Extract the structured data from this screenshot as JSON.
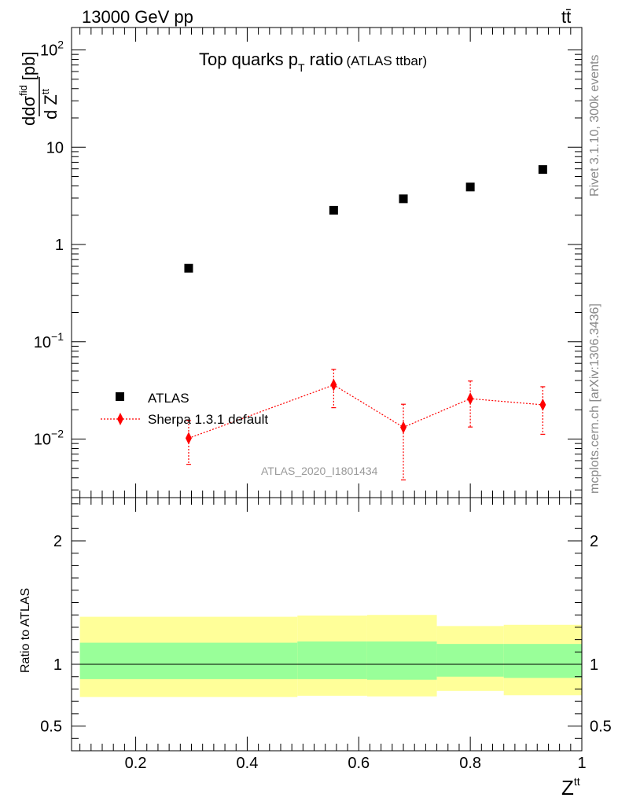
{
  "header": {
    "energy": "13000 GeV pp",
    "process": "tt̄"
  },
  "title": {
    "main": "Top quarks p",
    "sub": "T",
    "rest": " ratio",
    "tag": "(ATLAS ttbar)"
  },
  "ylabel": {
    "d1": "d",
    "dsigma": "dσ",
    "fid": "fid",
    "dz": "d Z",
    "tt": "tt",
    "unit": "[pb]"
  },
  "ratio_ylabel": "Ratio to ATLAS",
  "xlabel": {
    "base": "Z",
    "sup": "tt"
  },
  "analysis_label": "ATLAS_2020_I1801434",
  "side_text": {
    "rivet": "Rivet 3.1.10,  300k events",
    "mcplots": "mcplots.cern.ch [arXiv:1306.3436]"
  },
  "colors": {
    "data": "#000000",
    "mc": "#ff0000",
    "band_inner": "#99ff99",
    "band_outer": "#ffff99"
  },
  "chart_data": [
    {
      "type": "scatter",
      "title": "Top quarks pT ratio (ATLAS ttbar)",
      "xlabel": "Ztt",
      "ylabel": "dσfid/d Ztt [pb]",
      "yscale": "log",
      "ylim": [
        0.0025,
        170
      ],
      "xlim": [
        0.085,
        1.0
      ],
      "y_ticks": [
        {
          "v": 100,
          "label": "10",
          "exp": "2"
        },
        {
          "v": 10,
          "label": "10",
          "exp": ""
        },
        {
          "v": 1,
          "label": "1",
          "exp": ""
        },
        {
          "v": 0.1,
          "label": "10",
          "exp": "−1"
        },
        {
          "v": 0.01,
          "label": "10",
          "exp": "−2"
        }
      ],
      "legend_position": "bottom-left",
      "series": [
        {
          "name": "ATLAS",
          "marker": "square",
          "x": [
            0.295,
            0.555,
            0.68,
            0.8,
            0.93
          ],
          "y": [
            0.57,
            2.25,
            2.95,
            3.9,
            5.9
          ]
        },
        {
          "name": "Sherpa 1.3.1 default",
          "marker": "diamond",
          "line": "dotted",
          "x": [
            0.295,
            0.555,
            0.68,
            0.8,
            0.93
          ],
          "y": [
            0.0102,
            0.036,
            0.0132,
            0.026,
            0.0225
          ],
          "y_low": [
            0.0055,
            0.021,
            0.0038,
            0.0133,
            0.0112
          ],
          "y_high": [
            0.0155,
            0.052,
            0.0228,
            0.0395,
            0.0345
          ]
        }
      ]
    },
    {
      "type": "area",
      "ylabel": "Ratio to ATLAS",
      "xlabel": "Ztt",
      "xlim": [
        0.085,
        1.0
      ],
      "ylim": [
        0.3,
        2.35
      ],
      "x_ticks": [
        0.2,
        0.4,
        0.6,
        0.8,
        1
      ],
      "x_tick_labels": [
        "0.2",
        "0.4",
        "0.6",
        "0.8",
        "1"
      ],
      "y_ticks": [
        0.5,
        1,
        2
      ],
      "y_tick_labels": [
        "0.5",
        "1",
        "2"
      ],
      "bins": [
        {
          "x0": 0.1,
          "x1": 0.49,
          "outer_lo": 0.735,
          "outer_hi": 1.385,
          "inner_lo": 0.88,
          "inner_hi": 1.175
        },
        {
          "x0": 0.49,
          "x1": 0.615,
          "outer_lo": 0.745,
          "outer_hi": 1.395,
          "inner_lo": 0.88,
          "inner_hi": 1.185
        },
        {
          "x0": 0.615,
          "x1": 0.74,
          "outer_lo": 0.74,
          "outer_hi": 1.4,
          "inner_lo": 0.875,
          "inner_hi": 1.185
        },
        {
          "x0": 0.74,
          "x1": 0.86,
          "outer_lo": 0.785,
          "outer_hi": 1.31,
          "inner_lo": 0.9,
          "inner_hi": 1.165
        },
        {
          "x0": 0.86,
          "x1": 1.0,
          "outer_lo": 0.75,
          "outer_hi": 1.32,
          "inner_lo": 0.89,
          "inner_hi": 1.165
        }
      ],
      "reference_line": 1
    }
  ]
}
